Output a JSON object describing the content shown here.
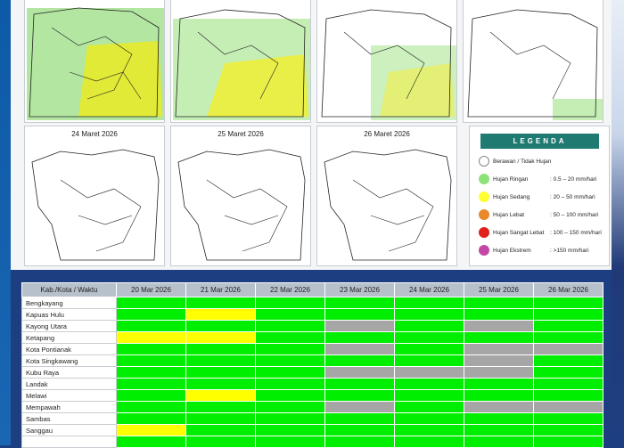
{
  "maps": [
    {
      "title": "",
      "coverage": "heavy"
    },
    {
      "title": "",
      "coverage": "heavy"
    },
    {
      "title": "",
      "coverage": "medium"
    },
    {
      "title": "",
      "coverage": "light"
    },
    {
      "title": "24 Maret 2026",
      "coverage": "none"
    },
    {
      "title": "25 Maret 2026",
      "coverage": "none"
    },
    {
      "title": "26 Maret 2026",
      "coverage": "none"
    }
  ],
  "legend": {
    "title": "LEGENDA",
    "items": [
      {
        "label": "Berawan / Tidak Hujan",
        "range": "",
        "color": "#ffffff"
      },
      {
        "label": "Hujan Ringan",
        "range": ": 0.5 – 20 mm/hari",
        "color": "#8ee27a"
      },
      {
        "label": "Hujan Sedang",
        "range": ": 20 – 50 mm/hari",
        "color": "#ffff33"
      },
      {
        "label": "Hujan Lebat",
        "range": ": 50 – 100 mm/hari",
        "color": "#e9892a"
      },
      {
        "label": "Hujan Sangat Lebat",
        "range": ": 100 – 150 mm/hari",
        "color": "#e0201b"
      },
      {
        "label": "Hujan Ekstrem",
        "range": ": >150 mm/hari",
        "color": "#c447a6"
      }
    ]
  },
  "table": {
    "header": [
      "Kab./Kota / Waktu",
      "20 Mar 2026",
      "21 Mar 2026",
      "22 Mar 2026",
      "23 Mar 2026",
      "24 Mar 2026",
      "25 Mar 2026",
      "26 Mar 2026"
    ],
    "rows": [
      {
        "name": "Bengkayang",
        "cells": [
          "g",
          "g",
          "g",
          "g",
          "g",
          "g",
          "g"
        ]
      },
      {
        "name": "Kapuas Hulu",
        "cells": [
          "g",
          "y",
          "g",
          "g",
          "g",
          "g",
          "g"
        ]
      },
      {
        "name": "Kayong Utara",
        "cells": [
          "g",
          "g",
          "g",
          "x",
          "g",
          "x",
          "g"
        ]
      },
      {
        "name": "Ketapang",
        "cells": [
          "y",
          "y",
          "g",
          "g",
          "g",
          "g",
          "g"
        ]
      },
      {
        "name": "Kota Pontianak",
        "cells": [
          "g",
          "g",
          "g",
          "x",
          "g",
          "x",
          "x"
        ]
      },
      {
        "name": "Kota Singkawang",
        "cells": [
          "g",
          "g",
          "g",
          "g",
          "g",
          "x",
          "g"
        ]
      },
      {
        "name": "Kubu Raya",
        "cells": [
          "g",
          "g",
          "g",
          "x",
          "x",
          "x",
          "g"
        ]
      },
      {
        "name": "Landak",
        "cells": [
          "g",
          "g",
          "g",
          "g",
          "g",
          "g",
          "g"
        ]
      },
      {
        "name": "Melawi",
        "cells": [
          "g",
          "y",
          "g",
          "g",
          "g",
          "g",
          "g"
        ]
      },
      {
        "name": "Mempawah",
        "cells": [
          "g",
          "g",
          "g",
          "x",
          "g",
          "x",
          "x"
        ]
      },
      {
        "name": "Sambas",
        "cells": [
          "g",
          "g",
          "g",
          "g",
          "g",
          "g",
          "g"
        ]
      },
      {
        "name": "Sanggau",
        "cells": [
          "y",
          "g",
          "g",
          "g",
          "g",
          "g",
          "g"
        ]
      },
      {
        "name": "",
        "cells": [
          "g",
          "g",
          "g",
          "g",
          "g",
          "g",
          "g"
        ]
      }
    ]
  }
}
